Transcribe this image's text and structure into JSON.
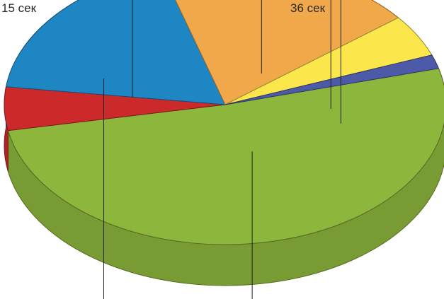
{
  "chart_data": {
    "type": "pie",
    "variant": "3d-exploded",
    "start_angle_deg": 345,
    "slices": [
      {
        "name": "",
        "value": 51.2,
        "color": "#8db63c",
        "label": "",
        "exploded": false
      },
      {
        "name": "",
        "value": 5.0,
        "color": "#cc2a2a",
        "label": "36 сек",
        "exploded": true
      },
      {
        "name": "",
        "value": 18.3,
        "color": "#1f86c4",
        "label": "",
        "exploded": true
      },
      {
        "name": "",
        "value": 19.0,
        "color": "#f1a84a",
        "label": "",
        "exploded": true
      },
      {
        "name": "",
        "value": 4.9,
        "color": "#fbe74c",
        "label": "",
        "exploded": true
      },
      {
        "name": "",
        "value": 1.6,
        "color": "#4c5aa8",
        "label": "15 сек",
        "exploded": true
      }
    ],
    "title": "",
    "legend": "none"
  }
}
